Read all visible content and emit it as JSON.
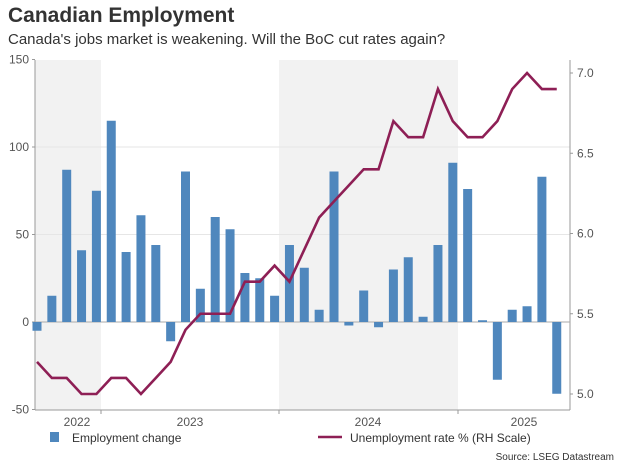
{
  "title": "Canadian Employment",
  "subtitle": "Canada's jobs market is weakening. Will the BoC cut rates again?",
  "source": "Source: LSEG Datastream",
  "colors": {
    "bars": "#4f87bd",
    "line": "#8e1f55",
    "shade": "#f2f2f2"
  },
  "chart_data": {
    "type": "bar+line",
    "title": "Canadian Employment",
    "x": [
      "2022-08",
      "2022-09",
      "2022-10",
      "2022-11",
      "2022-12",
      "2023-01",
      "2023-02",
      "2023-03",
      "2023-04",
      "2023-05",
      "2023-06",
      "2023-07",
      "2023-08",
      "2023-09",
      "2023-10",
      "2023-11",
      "2023-12",
      "2024-01",
      "2024-02",
      "2024-03",
      "2024-04",
      "2024-05",
      "2024-06",
      "2024-07",
      "2024-08",
      "2024-09",
      "2024-10",
      "2024-11",
      "2024-12",
      "2025-01",
      "2025-02",
      "2025-03",
      "2025-04",
      "2025-05",
      "2025-06",
      "2025-07"
    ],
    "x_tick_labels": [
      "2022",
      "2023",
      "2024",
      "2025"
    ],
    "series": [
      {
        "name": "Employment change",
        "type": "bar",
        "axis": "left",
        "values": [
          -5,
          15,
          87,
          41,
          75,
          115,
          40,
          61,
          44,
          -11,
          86,
          19,
          60,
          53,
          28,
          25,
          15,
          44,
          31,
          7,
          86,
          -2,
          18,
          -3,
          30,
          37,
          3,
          44,
          91,
          76,
          1,
          -33,
          7,
          9,
          83,
          -41
        ]
      },
      {
        "name": "Unemployment rate % (RH Scale)",
        "type": "line",
        "axis": "right",
        "values": [
          5.2,
          5.1,
          5.1,
          5.0,
          5.0,
          5.1,
          5.1,
          5.0,
          5.1,
          5.2,
          5.4,
          5.5,
          5.5,
          5.5,
          5.7,
          5.7,
          5.8,
          5.7,
          5.9,
          6.1,
          6.2,
          6.3,
          6.4,
          6.4,
          6.7,
          6.6,
          6.6,
          6.9,
          6.7,
          6.6,
          6.6,
          6.7,
          6.9,
          7.0,
          6.9,
          6.9
        ]
      }
    ],
    "ylim_left": [
      -50,
      150
    ],
    "yticks_left": [
      "-50",
      "0",
      "50",
      "100",
      "150"
    ],
    "ylim_right": [
      4.9,
      7.1
    ],
    "yticks_right": [
      "5.0",
      "5.5",
      "6.0",
      "6.5",
      "7.0"
    ],
    "grid": true,
    "legend_position": "bottom"
  }
}
